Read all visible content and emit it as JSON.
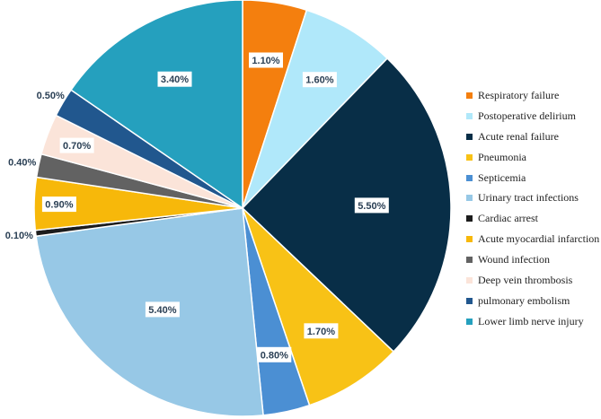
{
  "chart_data": {
    "type": "pie",
    "title": "",
    "series": [
      {
        "name": "Respiratory failure",
        "value": 1.1,
        "label": "1.10%",
        "color": "#F47F0E"
      },
      {
        "name": "Postoperative delirium",
        "value": 1.6,
        "label": "1.60%",
        "color": "#B0E8FA"
      },
      {
        "name": "Acute renal failure",
        "value": 5.5,
        "label": "5.50%",
        "color": "#082E47"
      },
      {
        "name": "Pneumonia",
        "value": 1.7,
        "label": "1.70%",
        "color": "#F8C216"
      },
      {
        "name": "Septicemia",
        "value": 0.8,
        "label": "0.80%",
        "color": "#4B8FD3"
      },
      {
        "name": "Urinary tract infections",
        "value": 5.4,
        "label": "5.40%",
        "color": "#97C8E6"
      },
      {
        "name": "Cardiac arrest",
        "value": 0.1,
        "label": "0.10%",
        "color": "#1C1C1C"
      },
      {
        "name": "Acute myocardial infarction",
        "value": 0.9,
        "label": "0.90%",
        "color": "#F7B80A"
      },
      {
        "name": "Wound infection",
        "value": 0.4,
        "label": "0.40%",
        "color": "#626262"
      },
      {
        "name": "Deep vein thrombosis",
        "value": 0.7,
        "label": "0.70%",
        "color": "#FBE4D9"
      },
      {
        "name": "pulmonary embolism",
        "value": 0.5,
        "label": "0.50%",
        "color": "#21578E"
      },
      {
        "name": "Lower limb nerve injury",
        "value": 3.4,
        "label": "3.40%",
        "color": "#25A0BE"
      }
    ],
    "legend": {
      "position": "right"
    }
  }
}
